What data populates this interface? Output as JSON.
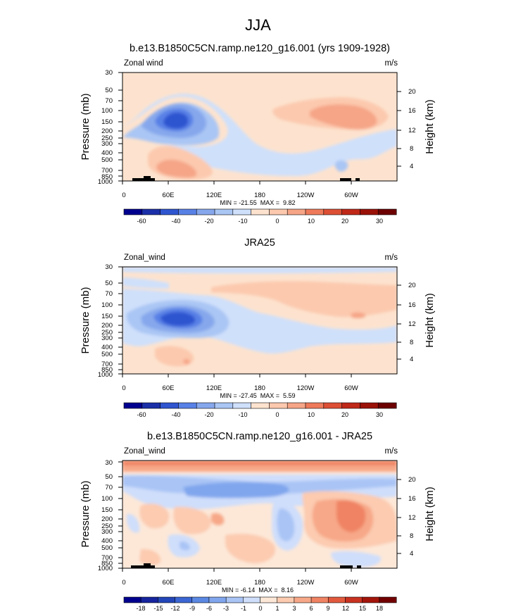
{
  "title": "JJA",
  "chart_data": [
    {
      "type": "heatmap",
      "title": "b.e13.B1850C5CN.ramp.ne120_g16.001 (yrs 1909-1928)",
      "variable": "Zonal wind",
      "units": "m/s",
      "ylabel": "Pressure (mb)",
      "ylabel_right": "Height (km)",
      "x_ticks": [
        "0",
        "60E",
        "120E",
        "180",
        "120W",
        "60W"
      ],
      "y_ticks": [
        "30",
        "50",
        "70",
        "100",
        "150",
        "200",
        "250",
        "300",
        "400",
        "500",
        "700",
        "850",
        "1000"
      ],
      "y_ticks_right": [
        "20",
        "16",
        "12",
        "8",
        "4"
      ],
      "stats": "MIN = -21.55  MAX =  9.82",
      "min": -21.55,
      "max": 9.82,
      "colorbar_labels": [
        "-60",
        "-40",
        "-20",
        "-10",
        "0",
        "10",
        "20",
        "30"
      ],
      "colorbar_colors": [
        "#00008f",
        "#1b30a8",
        "#2f55d0",
        "#5881e6",
        "#86a7ec",
        "#aac6f4",
        "#cfe0fb",
        "#fde3cf",
        "#fcc9ae",
        "#f6a587",
        "#ee7a5a",
        "#dd4f34",
        "#c02818",
        "#9a1108",
        "#6d0000"
      ]
    },
    {
      "type": "heatmap",
      "title": "JRA25",
      "variable": "Zonal_wind",
      "units": "m/s",
      "ylabel": "Pressure (mb)",
      "ylabel_right": "Height (km)",
      "x_ticks": [
        "0",
        "60E",
        "120E",
        "180",
        "120W",
        "60W"
      ],
      "y_ticks": [
        "30",
        "50",
        "70",
        "100",
        "150",
        "200",
        "250",
        "300",
        "400",
        "500",
        "700",
        "850",
        "1000"
      ],
      "y_ticks_right": [
        "20",
        "16",
        "12",
        "8",
        "4"
      ],
      "stats": "MIN = -27.45  MAX =  5.59",
      "min": -27.45,
      "max": 5.59,
      "colorbar_labels": [
        "-60",
        "-40",
        "-20",
        "-10",
        "0",
        "10",
        "20",
        "30"
      ],
      "colorbar_colors": [
        "#00008f",
        "#1b30a8",
        "#2f55d0",
        "#5881e6",
        "#86a7ec",
        "#aac6f4",
        "#cfe0fb",
        "#fde3cf",
        "#fcc9ae",
        "#f6a587",
        "#ee7a5a",
        "#dd4f34",
        "#c02818",
        "#9a1108",
        "#6d0000"
      ]
    },
    {
      "type": "heatmap",
      "title": "b.e13.B1850C5CN.ramp.ne120_g16.001 - JRA25",
      "variable": "Zonal_wind",
      "units": "m/s",
      "ylabel": "Pressure (mb)",
      "ylabel_right": "Height (km)",
      "x_ticks": [
        "0",
        "60E",
        "120E",
        "180",
        "120W",
        "60W"
      ],
      "y_ticks": [
        "30",
        "50",
        "70",
        "100",
        "150",
        "200",
        "250",
        "300",
        "400",
        "500",
        "700",
        "850",
        "1000"
      ],
      "y_ticks_right": [
        "20",
        "16",
        "12",
        "8",
        "4"
      ],
      "stats": "MIN = -6.14  MAX =  8.16",
      "min": -6.14,
      "max": 8.16,
      "colorbar_labels": [
        "-18",
        "-15",
        "-12",
        "-9",
        "-6",
        "-3",
        "-1",
        "0",
        "1",
        "3",
        "6",
        "9",
        "12",
        "15",
        "18"
      ],
      "colorbar_colors": [
        "#00008f",
        "#16259d",
        "#2346b8",
        "#3b66d3",
        "#5b88e3",
        "#80a6ed",
        "#a9c4f5",
        "#cfdefb",
        "#fde8d8",
        "#fccbb0",
        "#f7a888",
        "#ef8363",
        "#e25a3e",
        "#c93220",
        "#a3150a",
        "#720000"
      ]
    }
  ]
}
